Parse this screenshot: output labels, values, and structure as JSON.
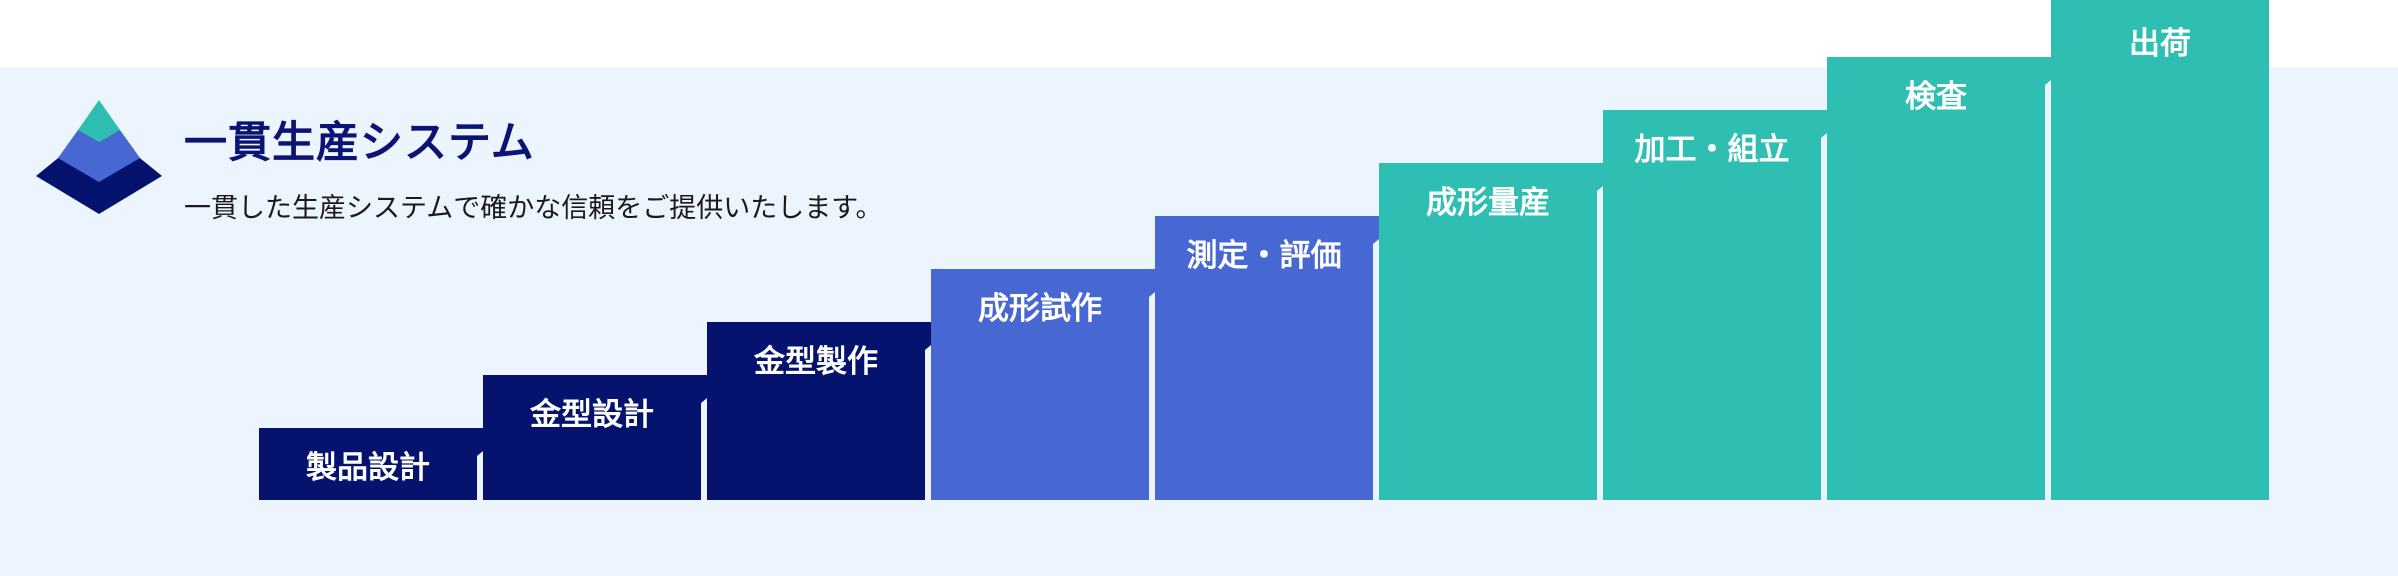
{
  "header": {
    "title": "一貫生産システム",
    "subtitle": "一貫した生産システムで確かな信頼をご提供いたします。",
    "logo_icon": "pyramid-icon"
  },
  "colors": {
    "background_band": "#ecf4fd",
    "title": "#0b1474",
    "navy": "#06136e",
    "blue": "#4767d2",
    "teal": "#2fbfb2",
    "logo_top": "#2fbfb2",
    "logo_middle": "#4767d2",
    "logo_bottom": "#06136e"
  },
  "steps": [
    {
      "label": "製品設計",
      "color": "navy"
    },
    {
      "label": "金型設計",
      "color": "navy"
    },
    {
      "label": "金型製作",
      "color": "navy"
    },
    {
      "label": "成形試作",
      "color": "blue"
    },
    {
      "label": "測定・評価",
      "color": "blue"
    },
    {
      "label": "成形量産",
      "color": "teal"
    },
    {
      "label": "加工・組立",
      "color": "teal"
    },
    {
      "label": "検査",
      "color": "teal"
    },
    {
      "label": "出荷",
      "color": "teal"
    }
  ]
}
